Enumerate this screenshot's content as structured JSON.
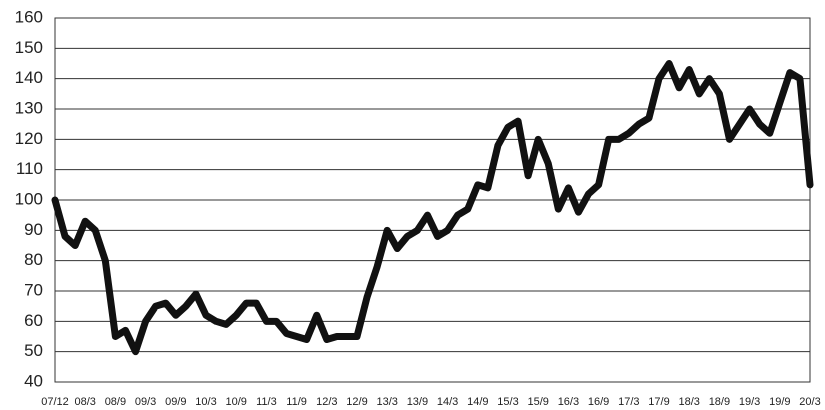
{
  "chart_data": {
    "type": "line",
    "categories": [
      "07/12",
      null,
      null,
      "08/3",
      null,
      null,
      "08/9",
      null,
      null,
      "09/3",
      null,
      null,
      "09/9",
      null,
      null,
      "10/3",
      null,
      null,
      "10/9",
      null,
      null,
      "11/3",
      null,
      null,
      "11/9",
      null,
      null,
      "12/3",
      null,
      null,
      "12/9",
      null,
      null,
      "13/3",
      null,
      null,
      "13/9",
      null,
      null,
      "14/3",
      null,
      null,
      "14/9",
      null,
      null,
      "15/3",
      null,
      null,
      "15/9",
      null,
      null,
      "16/3",
      null,
      null,
      "16/9",
      null,
      null,
      "17/3",
      null,
      null,
      "17/9",
      null,
      null,
      "18/3",
      null,
      null,
      "18/9",
      null,
      null,
      "19/3",
      null,
      null,
      "19/9",
      null,
      null,
      "20/3"
    ],
    "series": [
      {
        "color": "#111111",
        "values": [
          100,
          88,
          85,
          93,
          90,
          80,
          55,
          57,
          50,
          60,
          65,
          66,
          62,
          65,
          69,
          62,
          60,
          59,
          62,
          66,
          66,
          60,
          60,
          56,
          55,
          54,
          62,
          54,
          55,
          55,
          55,
          68,
          78,
          90,
          84,
          88,
          90,
          95,
          88,
          90,
          95,
          97,
          105,
          104,
          118,
          124,
          126,
          108,
          120,
          112,
          97,
          104,
          96,
          102,
          105,
          120,
          120,
          122,
          125,
          127,
          140,
          145,
          137,
          143,
          135,
          140,
          135,
          120,
          125,
          130,
          125,
          122,
          132,
          142,
          140,
          105
        ]
      }
    ],
    "ylim": [
      40,
      160
    ],
    "yticks": [
      40,
      50,
      60,
      70,
      80,
      90,
      100,
      110,
      120,
      130,
      140,
      150,
      160
    ],
    "grid": true
  }
}
